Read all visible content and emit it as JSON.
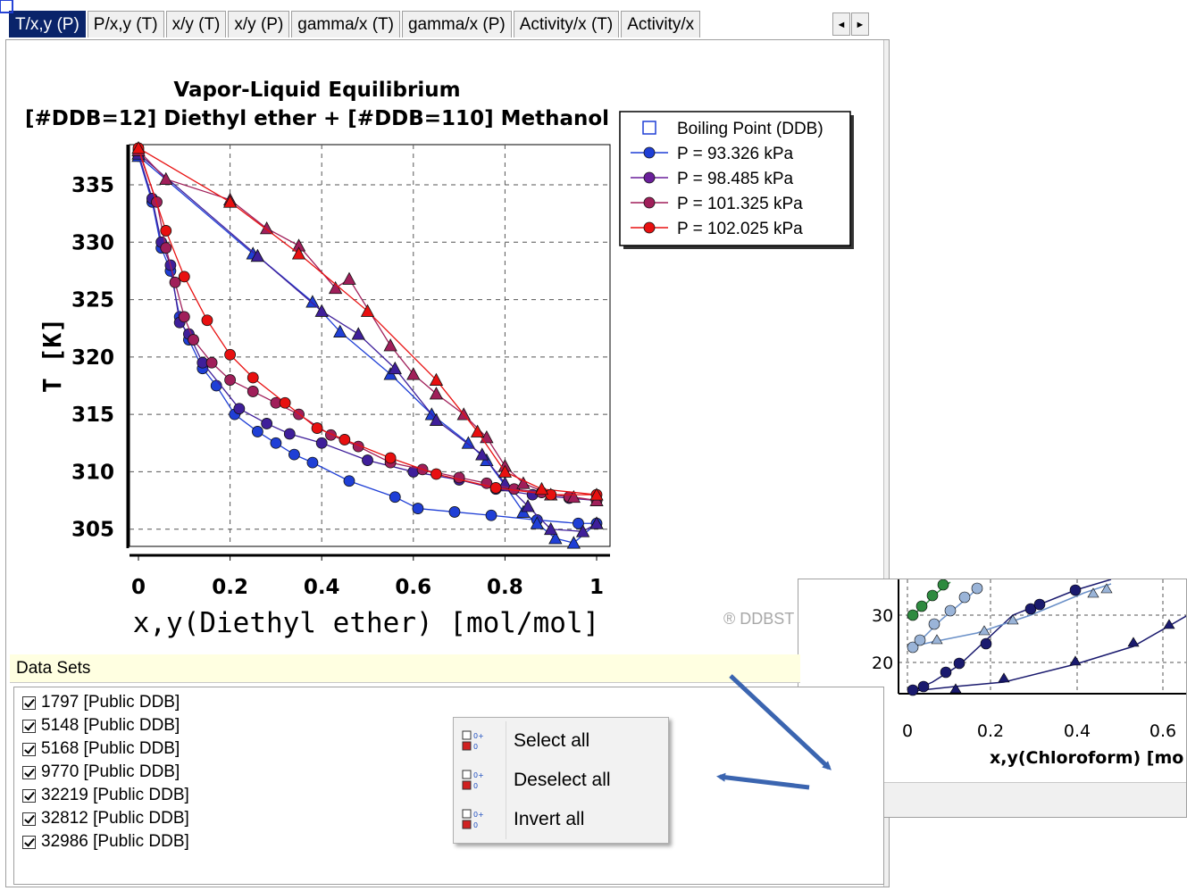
{
  "tabs": [
    {
      "label": "T/x,y (P)",
      "active": true
    },
    {
      "label": "P/x,y (T)",
      "active": false
    },
    {
      "label": "x/y (T)",
      "active": false
    },
    {
      "label": "x/y (P)",
      "active": false
    },
    {
      "label": "gamma/x (T)",
      "active": false
    },
    {
      "label": "gamma/x (P)",
      "active": false
    },
    {
      "label": "Activity/x (T)",
      "active": false
    },
    {
      "label": "Activity/x",
      "active": false
    }
  ],
  "tab_scroll": {
    "left": "◄",
    "right": "►"
  },
  "chart_data": {
    "type": "scatter",
    "title": "Vapor-Liquid Equilibrium",
    "subtitle": "[#DDB=12] Diethyl ether + [#DDB=110] Methanol",
    "xlabel": "x,y(Diethyl ether) [mol/mol]",
    "ylabel": "T [K]",
    "xlim": [
      0,
      1
    ],
    "ylim": [
      303.5,
      338.5
    ],
    "xticks": [
      "0",
      "0.2",
      "0.4",
      "0.6",
      "0.8",
      "1"
    ],
    "yticks": [
      "305",
      "310",
      "315",
      "320",
      "325",
      "330",
      "335"
    ],
    "grid": true,
    "legend_position": "top-right",
    "legend": [
      {
        "label": "Boiling Point (DDB)",
        "marker": "open-square",
        "color": "#1f3fd6"
      },
      {
        "label": "P = 93.326 kPa",
        "marker": "circle",
        "color": "#1f3fd6"
      },
      {
        "label": "P = 98.485 kPa",
        "marker": "circle",
        "color": "#6a1f9a"
      },
      {
        "label": "P = 101.325 kPa",
        "marker": "circle",
        "color": "#a01f5a"
      },
      {
        "label": "P = 102.025 kPa",
        "marker": "circle",
        "color": "#e81010"
      }
    ],
    "boiling_points": [
      {
        "x": 0,
        "y": 336.0
      },
      {
        "x": 0,
        "y": 337.7
      },
      {
        "x": 1,
        "y": 305.5
      },
      {
        "x": 1,
        "y": 307.5
      }
    ],
    "series": [
      {
        "color": "#1f3fd6",
        "liquid": [
          [
            0,
            337.5
          ],
          [
            0.03,
            333.5
          ],
          [
            0.05,
            329.5
          ],
          [
            0.07,
            327.5
          ],
          [
            0.09,
            323.5
          ],
          [
            0.11,
            321.5
          ],
          [
            0.14,
            319.0
          ],
          [
            0.17,
            317.5
          ],
          [
            0.21,
            315.0
          ],
          [
            0.26,
            313.5
          ],
          [
            0.3,
            312.5
          ],
          [
            0.34,
            311.5
          ],
          [
            0.38,
            310.8
          ],
          [
            0.46,
            309.2
          ],
          [
            0.56,
            307.8
          ],
          [
            0.61,
            306.8
          ],
          [
            0.69,
            306.5
          ],
          [
            0.77,
            306.2
          ],
          [
            0.87,
            305.8
          ],
          [
            0.96,
            305.5
          ],
          [
            1,
            305.5
          ]
        ],
        "vapor": [
          [
            0,
            337.5
          ],
          [
            0.25,
            329.0
          ],
          [
            0.26,
            328.8
          ],
          [
            0.38,
            324.8
          ],
          [
            0.44,
            322.2
          ],
          [
            0.55,
            318.5
          ],
          [
            0.64,
            315.0
          ],
          [
            0.72,
            312.5
          ],
          [
            0.76,
            311.0
          ],
          [
            0.8,
            308.8
          ],
          [
            0.84,
            306.5
          ],
          [
            0.87,
            305.5
          ],
          [
            0.91,
            304.2
          ],
          [
            0.95,
            303.8
          ],
          [
            1,
            305.5
          ]
        ]
      },
      {
        "color": "#3f1f9a",
        "liquid": [
          [
            0,
            337.7
          ],
          [
            0.03,
            333.8
          ],
          [
            0.05,
            330.0
          ],
          [
            0.07,
            328.0
          ],
          [
            0.09,
            323.0
          ],
          [
            0.11,
            322.0
          ],
          [
            0.14,
            319.5
          ],
          [
            0.22,
            315.5
          ],
          [
            0.28,
            314.2
          ],
          [
            0.33,
            313.3
          ],
          [
            0.4,
            312.5
          ],
          [
            0.5,
            311.0
          ],
          [
            0.6,
            310.0
          ],
          [
            0.7,
            309.3
          ],
          [
            0.78,
            308.5
          ],
          [
            0.86,
            308.0
          ],
          [
            0.94,
            307.7
          ],
          [
            1,
            307.5
          ]
        ],
        "vapor": [
          [
            0,
            337.7
          ],
          [
            0.26,
            328.8
          ],
          [
            0.4,
            324.0
          ],
          [
            0.48,
            322.0
          ],
          [
            0.56,
            319.0
          ],
          [
            0.65,
            314.5
          ],
          [
            0.75,
            311.5
          ],
          [
            0.8,
            309.0
          ],
          [
            0.85,
            307.0
          ],
          [
            0.9,
            305.0
          ],
          [
            0.97,
            304.8
          ],
          [
            1,
            305.5
          ]
        ]
      },
      {
        "color": "#a01f5a",
        "liquid": [
          [
            0,
            338.0
          ],
          [
            0.04,
            333.5
          ],
          [
            0.06,
            329.5
          ],
          [
            0.08,
            326.5
          ],
          [
            0.1,
            323.5
          ],
          [
            0.12,
            321.5
          ],
          [
            0.16,
            319.5
          ],
          [
            0.2,
            318.0
          ],
          [
            0.25,
            317.0
          ],
          [
            0.3,
            316.0
          ],
          [
            0.35,
            315.0
          ],
          [
            0.42,
            313.2
          ],
          [
            0.48,
            312.2
          ],
          [
            0.55,
            310.8
          ],
          [
            0.62,
            310.2
          ],
          [
            0.7,
            309.5
          ],
          [
            0.76,
            309.0
          ],
          [
            0.82,
            308.5
          ],
          [
            0.88,
            308.2
          ],
          [
            0.94,
            307.8
          ],
          [
            1,
            307.5
          ]
        ],
        "vapor": [
          [
            0,
            338.0
          ],
          [
            0.06,
            335.5
          ],
          [
            0.2,
            333.7
          ],
          [
            0.28,
            331.2
          ],
          [
            0.35,
            329.7
          ],
          [
            0.43,
            326.0
          ],
          [
            0.46,
            326.8
          ],
          [
            0.55,
            321.0
          ],
          [
            0.6,
            318.5
          ],
          [
            0.65,
            316.8
          ],
          [
            0.71,
            315.0
          ],
          [
            0.76,
            313.0
          ],
          [
            0.8,
            310.5
          ],
          [
            0.84,
            309.0
          ],
          [
            0.9,
            308.0
          ],
          [
            0.95,
            307.8
          ],
          [
            1,
            307.5
          ]
        ]
      },
      {
        "color": "#e81010",
        "liquid": [
          [
            0,
            338.2
          ],
          [
            0.06,
            331.0
          ],
          [
            0.1,
            327.0
          ],
          [
            0.15,
            323.2
          ],
          [
            0.2,
            320.2
          ],
          [
            0.25,
            318.2
          ],
          [
            0.32,
            316.0
          ],
          [
            0.39,
            313.8
          ],
          [
            0.45,
            312.8
          ],
          [
            0.55,
            311.2
          ],
          [
            0.65,
            309.8
          ],
          [
            0.78,
            308.6
          ],
          [
            0.9,
            308.0
          ],
          [
            1,
            308.0
          ]
        ],
        "vapor": [
          [
            0,
            338.2
          ],
          [
            0.2,
            333.5
          ],
          [
            0.35,
            329.0
          ],
          [
            0.5,
            324.0
          ],
          [
            0.65,
            318.0
          ],
          [
            0.74,
            313.5
          ],
          [
            0.8,
            310.0
          ],
          [
            0.88,
            308.5
          ],
          [
            1,
            308.0
          ]
        ]
      }
    ]
  },
  "copyright": "® DDBST",
  "data_sets": {
    "header": "Data Sets",
    "items": [
      {
        "label": "1797 [Public DDB]",
        "checked": true
      },
      {
        "label": "5148 [Public DDB]",
        "checked": true
      },
      {
        "label": "5168 [Public DDB]",
        "checked": true
      },
      {
        "label": "9770 [Public DDB]",
        "checked": true
      },
      {
        "label": "32219 [Public DDB]",
        "checked": true
      },
      {
        "label": "32812 [Public DDB]",
        "checked": true
      },
      {
        "label": "32986 [Public DDB]",
        "checked": true
      }
    ]
  },
  "context_menu": {
    "items": [
      {
        "label": "Select all"
      },
      {
        "label": "Deselect all"
      },
      {
        "label": "Invert all"
      }
    ]
  },
  "inset": {
    "xlabel": "x,y(Chloroform) [mo",
    "xticks": [
      "0",
      "0.2",
      "0.4",
      "0.6"
    ],
    "yticks": [
      "30",
      "20"
    ],
    "data_sets_label": "Data Sets"
  }
}
